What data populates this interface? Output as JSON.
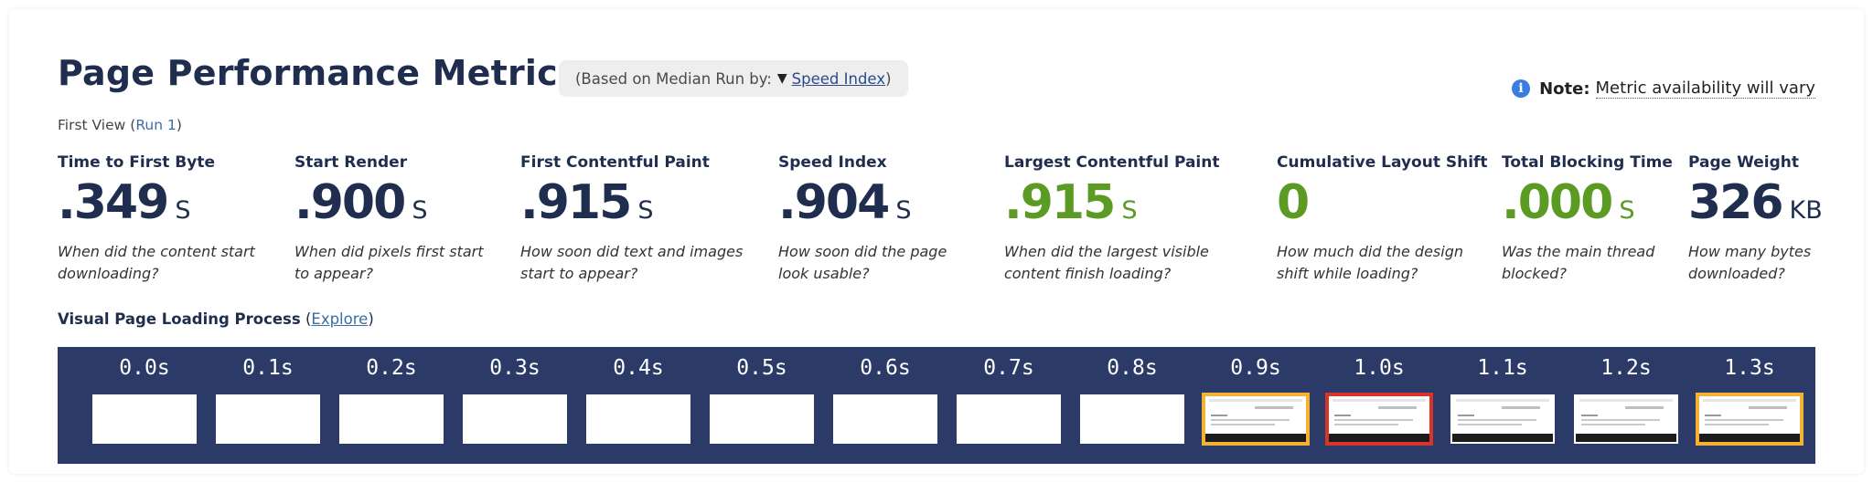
{
  "header": {
    "title": "Page Performance Metrics",
    "median_prefix": "(Based on Median Run by:",
    "median_arrow": "▼",
    "median_link": "Speed Index",
    "median_suffix": ")"
  },
  "note": {
    "icon": "info-icon",
    "icon_glyph": "i",
    "label": "Note:",
    "text": "Metric availability will vary"
  },
  "first_view": {
    "prefix": "First View (",
    "run_link": "Run 1",
    "suffix": ")"
  },
  "metrics": [
    {
      "label": "Time to First Byte",
      "value": ".349",
      "unit": "S",
      "desc": "When did the content start\ndownloading?",
      "status": "neutral"
    },
    {
      "label": "Start Render",
      "value": ".900",
      "unit": "S",
      "desc": "When did pixels first start\nto appear?",
      "status": "neutral"
    },
    {
      "label": "First Contentful Paint",
      "value": ".915",
      "unit": "S",
      "desc": "How soon did text and images\nstart to appear?",
      "status": "neutral"
    },
    {
      "label": "Speed Index",
      "value": ".904",
      "unit": "S",
      "desc": "How soon did the page\nlook usable?",
      "status": "neutral"
    },
    {
      "label": "Largest Contentful Paint",
      "value": ".915",
      "unit": "S",
      "desc": "When did the largest visible\ncontent finish loading?",
      "status": "good"
    },
    {
      "label": "Cumulative Layout Shift",
      "value": "0",
      "unit": "",
      "desc": "How much did the design\nshift while loading?",
      "status": "good"
    },
    {
      "label": "Total Blocking Time",
      "value": ".000",
      "unit": "S",
      "desc": "Was the main thread\nblocked?",
      "status": "good"
    },
    {
      "label": "Page Weight",
      "value": "326",
      "unit": "KB",
      "desc": "How many bytes\ndownloaded?",
      "status": "neutral"
    }
  ],
  "visual_loading": {
    "label": "Visual Page Loading Process",
    "open_paren": " (",
    "explore_link": "Explore",
    "close_paren": ")"
  },
  "filmstrip": [
    {
      "time": "0.0s",
      "rendered": false,
      "border": "none"
    },
    {
      "time": "0.1s",
      "rendered": false,
      "border": "none"
    },
    {
      "time": "0.2s",
      "rendered": false,
      "border": "none"
    },
    {
      "time": "0.3s",
      "rendered": false,
      "border": "none"
    },
    {
      "time": "0.4s",
      "rendered": false,
      "border": "none"
    },
    {
      "time": "0.5s",
      "rendered": false,
      "border": "none"
    },
    {
      "time": "0.6s",
      "rendered": false,
      "border": "none"
    },
    {
      "time": "0.7s",
      "rendered": false,
      "border": "none"
    },
    {
      "time": "0.8s",
      "rendered": false,
      "border": "none"
    },
    {
      "time": "0.9s",
      "rendered": true,
      "border": "yellow"
    },
    {
      "time": "1.0s",
      "rendered": true,
      "border": "red"
    },
    {
      "time": "1.1s",
      "rendered": true,
      "border": "none"
    },
    {
      "time": "1.2s",
      "rendered": true,
      "border": "none"
    },
    {
      "time": "1.3s",
      "rendered": true,
      "border": "yellow"
    }
  ],
  "colors": {
    "navy": "#1f2d4e",
    "good_green": "#5b9a23",
    "filmstrip_bg": "#2b3a67",
    "highlight_yellow": "#f4b232",
    "highlight_red": "#d9342b",
    "link_blue": "#3a6ea5"
  }
}
